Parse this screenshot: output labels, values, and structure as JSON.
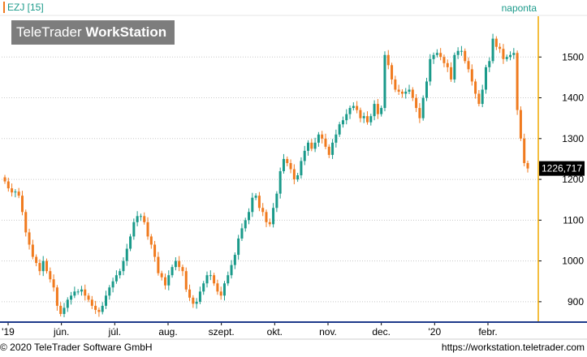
{
  "legend": {
    "symbol": "EZJ [15]"
  },
  "interval_label": "naponta",
  "watermark": {
    "brand_light": "TeleTrader",
    "brand_bold": "WorkStation"
  },
  "footer": {
    "copyright": "© 2020 TeleTrader Software GmbH",
    "url": "https://workstation.teletrader.com"
  },
  "last_price": {
    "value": 1226.717,
    "label": "1226,717"
  },
  "colors": {
    "up": "#1a9a8a",
    "down": "#f07a1e",
    "axis": "#f0a800",
    "grid": "#c8c8c8",
    "price_tag_bg": "#000000"
  },
  "chart_data": {
    "type": "candlestick",
    "y_axis": {
      "ticks": [
        900,
        1000,
        1100,
        1200,
        1300,
        1400,
        1500
      ],
      "range": [
        850,
        1600
      ],
      "position": "right"
    },
    "x_axis": {
      "labels": [
        "'19",
        "jún.",
        "júl.",
        "aug.",
        "szept.",
        "okt.",
        "nov.",
        "dec.",
        "'20",
        "febr."
      ]
    },
    "series_close": [
      1195,
      1178,
      1168,
      1170,
      1160,
      1120,
      1070,
      1040,
      1010,
      995,
      975,
      1000,
      975,
      955,
      935,
      890,
      870,
      885,
      905,
      915,
      925,
      925,
      930,
      915,
      905,
      890,
      880,
      875,
      890,
      915,
      935,
      950,
      965,
      975,
      1000,
      1030,
      1060,
      1095,
      1110,
      1110,
      1095,
      1060,
      1040,
      1010,
      970,
      960,
      940,
      965,
      985,
      1000,
      985,
      975,
      930,
      910,
      895,
      900,
      925,
      945,
      965,
      965,
      945,
      925,
      915,
      945,
      965,
      990,
      1015,
      1055,
      1080,
      1100,
      1120,
      1155,
      1160,
      1130,
      1120,
      1095,
      1090,
      1130,
      1165,
      1220,
      1250,
      1240,
      1225,
      1200,
      1210,
      1245,
      1270,
      1290,
      1275,
      1290,
      1310,
      1300,
      1280,
      1260,
      1290,
      1310,
      1335,
      1345,
      1360,
      1375,
      1380,
      1370,
      1350,
      1355,
      1340,
      1355,
      1385,
      1360,
      1375,
      1505,
      1480,
      1445,
      1420,
      1415,
      1410,
      1415,
      1420,
      1400,
      1375,
      1350,
      1400,
      1440,
      1495,
      1505,
      1510,
      1500,
      1485,
      1475,
      1445,
      1505,
      1515,
      1515,
      1490,
      1470,
      1440,
      1410,
      1385,
      1420,
      1475,
      1490,
      1545,
      1525,
      1520,
      1495,
      1500,
      1505,
      1510,
      1370,
      1300,
      1240,
      1226.717
    ]
  }
}
